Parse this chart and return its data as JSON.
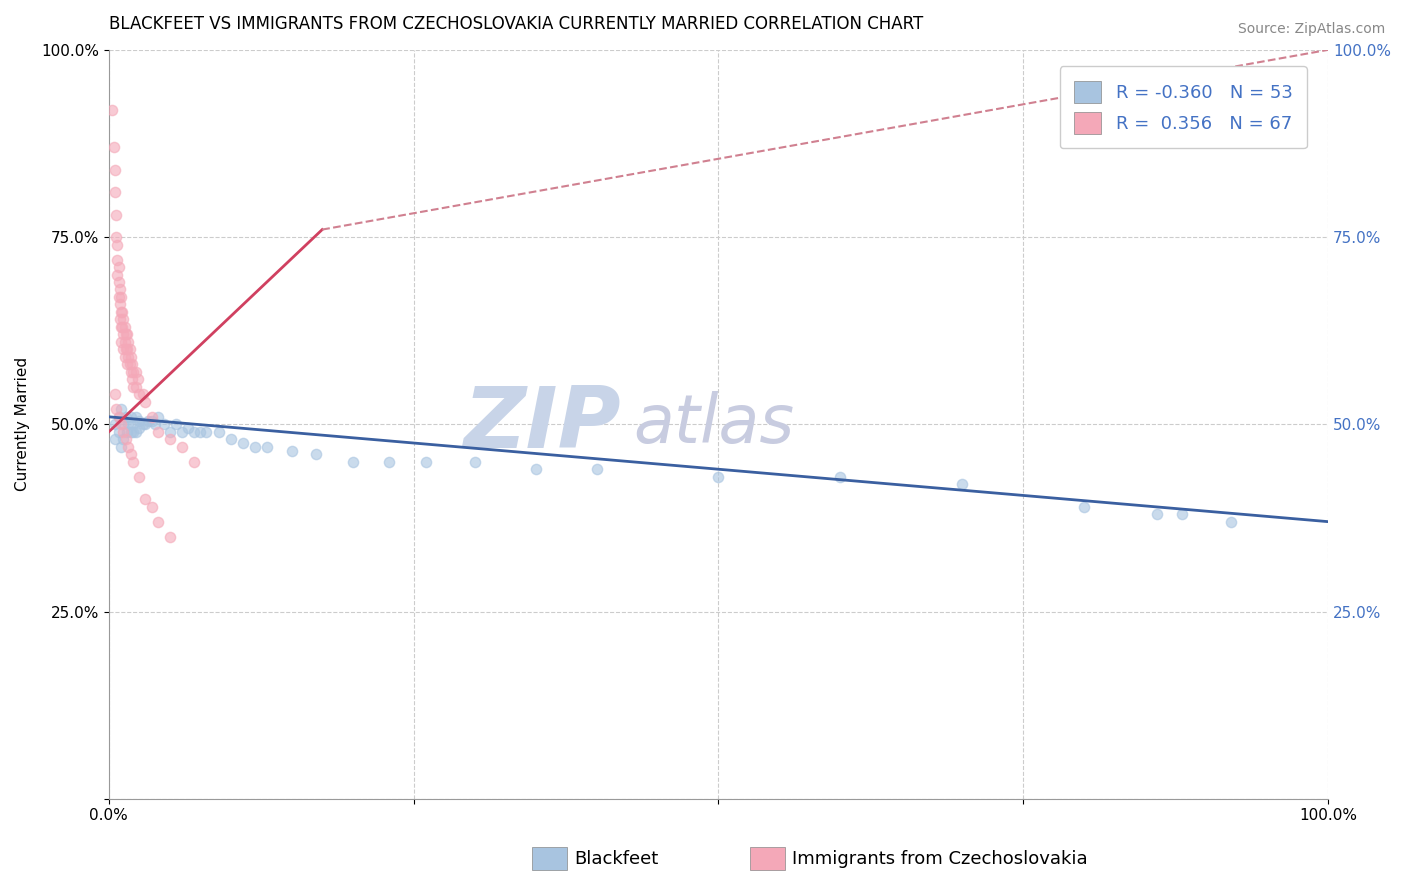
{
  "title": "BLACKFEET VS IMMIGRANTS FROM CZECHOSLOVAKIA CURRENTLY MARRIED CORRELATION CHART",
  "source": "Source: ZipAtlas.com",
  "ylabel": "Currently Married",
  "xlabel": "",
  "watermark_zip": "ZIP",
  "watermark_atlas": "atlas",
  "blue_label": "Blackfeet",
  "pink_label": "Immigrants from Czechoslovakia",
  "blue_R": -0.36,
  "blue_N": 53,
  "pink_R": 0.356,
  "pink_N": 67,
  "xlim": [
    0,
    1.0
  ],
  "ylim": [
    0,
    1.0
  ],
  "xtick_labels": [
    "0.0%",
    "",
    "",
    "",
    "100.0%"
  ],
  "ytick_labels_left": [
    "",
    "25.0%",
    "50.0%",
    "75.0%",
    "100.0%"
  ],
  "ytick_labels_right": [
    "",
    "25.0%",
    "50.0%",
    "75.0%",
    "100.0%"
  ],
  "blue_scatter_x": [
    0.005,
    0.005,
    0.008,
    0.008,
    0.01,
    0.01,
    0.012,
    0.012,
    0.014,
    0.015,
    0.016,
    0.018,
    0.018,
    0.02,
    0.02,
    0.022,
    0.022,
    0.025,
    0.025,
    0.028,
    0.03,
    0.032,
    0.035,
    0.038,
    0.04,
    0.045,
    0.05,
    0.055,
    0.06,
    0.065,
    0.07,
    0.075,
    0.08,
    0.09,
    0.1,
    0.11,
    0.12,
    0.13,
    0.15,
    0.17,
    0.2,
    0.23,
    0.26,
    0.3,
    0.35,
    0.4,
    0.5,
    0.6,
    0.7,
    0.8,
    0.86,
    0.88,
    0.92
  ],
  "blue_scatter_y": [
    0.5,
    0.48,
    0.51,
    0.49,
    0.52,
    0.47,
    0.5,
    0.48,
    0.51,
    0.49,
    0.5,
    0.51,
    0.49,
    0.5,
    0.49,
    0.51,
    0.49,
    0.505,
    0.495,
    0.5,
    0.5,
    0.505,
    0.505,
    0.5,
    0.51,
    0.5,
    0.49,
    0.5,
    0.49,
    0.495,
    0.49,
    0.49,
    0.49,
    0.49,
    0.48,
    0.475,
    0.47,
    0.47,
    0.465,
    0.46,
    0.45,
    0.45,
    0.45,
    0.45,
    0.44,
    0.44,
    0.43,
    0.43,
    0.42,
    0.39,
    0.38,
    0.38,
    0.37
  ],
  "pink_scatter_x": [
    0.003,
    0.004,
    0.005,
    0.005,
    0.006,
    0.006,
    0.007,
    0.007,
    0.007,
    0.008,
    0.008,
    0.008,
    0.009,
    0.009,
    0.009,
    0.01,
    0.01,
    0.01,
    0.01,
    0.011,
    0.011,
    0.012,
    0.012,
    0.012,
    0.013,
    0.013,
    0.013,
    0.014,
    0.014,
    0.015,
    0.015,
    0.015,
    0.016,
    0.016,
    0.017,
    0.017,
    0.018,
    0.018,
    0.019,
    0.019,
    0.02,
    0.02,
    0.022,
    0.022,
    0.024,
    0.025,
    0.028,
    0.03,
    0.035,
    0.04,
    0.05,
    0.06,
    0.07,
    0.005,
    0.006,
    0.008,
    0.01,
    0.012,
    0.014,
    0.016,
    0.018,
    0.02,
    0.025,
    0.03,
    0.035,
    0.04,
    0.05
  ],
  "pink_scatter_y": [
    0.92,
    0.87,
    0.84,
    0.81,
    0.78,
    0.75,
    0.74,
    0.72,
    0.7,
    0.71,
    0.69,
    0.67,
    0.68,
    0.66,
    0.64,
    0.67,
    0.65,
    0.63,
    0.61,
    0.65,
    0.63,
    0.64,
    0.62,
    0.6,
    0.63,
    0.61,
    0.59,
    0.62,
    0.6,
    0.62,
    0.6,
    0.58,
    0.61,
    0.59,
    0.6,
    0.58,
    0.59,
    0.57,
    0.58,
    0.56,
    0.57,
    0.55,
    0.57,
    0.55,
    0.56,
    0.54,
    0.54,
    0.53,
    0.51,
    0.49,
    0.48,
    0.47,
    0.45,
    0.54,
    0.52,
    0.51,
    0.5,
    0.49,
    0.48,
    0.47,
    0.46,
    0.45,
    0.43,
    0.4,
    0.39,
    0.37,
    0.35
  ],
  "blue_line_x": [
    0.0,
    1.0
  ],
  "blue_line_y": [
    0.51,
    0.37
  ],
  "pink_line_x": [
    0.0,
    0.175
  ],
  "pink_line_y": [
    0.49,
    0.76
  ],
  "pink_dashed_line_x": [
    0.175,
    1.0
  ],
  "pink_dashed_line_y": [
    0.76,
    1.0
  ],
  "title_fontsize": 12,
  "axis_fontsize": 11,
  "legend_fontsize": 13,
  "tick_fontsize": 11,
  "scatter_size": 55,
  "blue_color": "#a8c4e0",
  "pink_color": "#f4a8b8",
  "blue_line_color": "#3a5fa0",
  "pink_line_color": "#d04060",
  "pink_dashed_color": "#d08090",
  "grid_color": "#cccccc",
  "watermark_zip_color": "#c8d4e8",
  "watermark_atlas_color": "#c8cce0",
  "source_fontsize": 10
}
